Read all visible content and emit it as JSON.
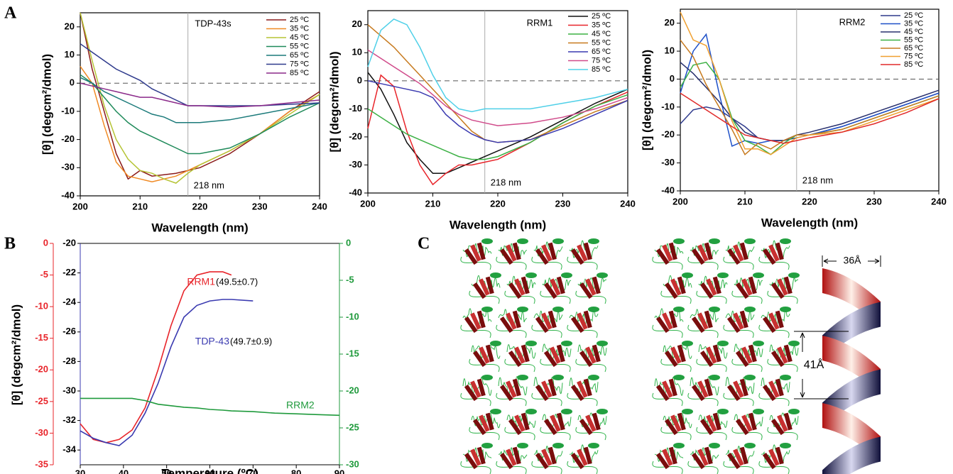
{
  "panel_labels": [
    "A",
    "B",
    "C"
  ],
  "chart_data": [
    {
      "type": "line",
      "title": "TDP-43s",
      "x_label": "Wavelength (nm)",
      "y_label": "[θ] (degcm²/dmol)",
      "xlim": [
        200,
        240
      ],
      "xticks": [
        200,
        210,
        220,
        230,
        240
      ],
      "ylim": [
        -40,
        25
      ],
      "yticks": [
        -40,
        -30,
        -20,
        -10,
        0,
        10,
        20
      ],
      "annotation": {
        "text": "218 nm",
        "x": 218
      },
      "x": [
        200,
        202,
        204,
        206,
        208,
        210,
        212,
        214,
        216,
        218,
        220,
        225,
        230,
        235,
        240
      ],
      "series": [
        {
          "name": "25 ºC",
          "color": "#8b1a1a",
          "values": [
            25,
            5,
            -10,
            -25,
            -34,
            -31,
            -33,
            -32.5,
            -32,
            -31,
            -30,
            -25,
            -18,
            -10,
            -3
          ]
        },
        {
          "name": "35 ºC",
          "color": "#f08a24",
          "values": [
            6,
            0,
            -15,
            -28,
            -33,
            -34,
            -35,
            -34,
            -33,
            -31,
            -29,
            -24,
            -18,
            -10,
            -4
          ]
        },
        {
          "name": "45 ºC",
          "color": "#b5c334",
          "values": [
            25,
            8,
            -8,
            -20,
            -27,
            -31,
            -32,
            -34,
            -35.5,
            -32,
            -29,
            -24,
            -18,
            -11,
            -4
          ]
        },
        {
          "name": "55 ºC",
          "color": "#1f8a5a",
          "values": [
            3,
            0,
            -5,
            -10,
            -14,
            -17,
            -19,
            -21,
            -23,
            -25,
            -25,
            -23,
            -18,
            -12,
            -7
          ]
        },
        {
          "name": "65 ºC",
          "color": "#1b7a7a",
          "values": [
            2,
            0,
            -3,
            -5,
            -7,
            -9,
            -11,
            -12,
            -14,
            -14,
            -14,
            -13,
            -11,
            -9,
            -7
          ]
        },
        {
          "name": "75 ºC",
          "color": "#2e3a8c",
          "values": [
            14,
            11,
            8,
            5,
            3,
            1,
            -2,
            -4,
            -6,
            -8,
            -8,
            -8,
            -8,
            -7.5,
            -7
          ]
        },
        {
          "name": "85 ºC",
          "color": "#8b2a8a",
          "values": [
            0,
            -1,
            -2,
            -3,
            -4,
            -5,
            -5,
            -6,
            -7,
            -8,
            -8,
            -8.5,
            -8,
            -7,
            -6
          ]
        }
      ]
    },
    {
      "type": "line",
      "title": "RRM1",
      "x_label": "Wavelength (nm)",
      "y_label": "[θ] (degcm²/dmol)",
      "xlim": [
        200,
        240
      ],
      "xticks": [
        200,
        210,
        220,
        230,
        240
      ],
      "ylim": [
        -40,
        25
      ],
      "yticks": [
        -40,
        -30,
        -20,
        -10,
        0,
        10,
        20
      ],
      "annotation": {
        "text": "218 nm",
        "x": 218
      },
      "x": [
        200,
        202,
        204,
        206,
        208,
        210,
        212,
        214,
        216,
        218,
        220,
        225,
        230,
        235,
        240
      ],
      "series": [
        {
          "name": "25 ºC",
          "color": "#111111",
          "values": [
            3,
            -3,
            -12,
            -22,
            -28,
            -33,
            -33,
            -31,
            -29,
            -27,
            -25,
            -20,
            -14,
            -8,
            -3
          ]
        },
        {
          "name": "35 ºC",
          "color": "#e8242a",
          "values": [
            -17,
            2,
            -2,
            -18,
            -30,
            -37,
            -33,
            -30,
            -30,
            -29,
            -28,
            -22,
            -15,
            -9,
            -4
          ]
        },
        {
          "name": "45 ºC",
          "color": "#3cb044",
          "values": [
            -10,
            -13,
            -16,
            -19,
            -21,
            -23,
            -25,
            -27,
            -28,
            -28,
            -27,
            -22,
            -15,
            -9,
            -5
          ]
        },
        {
          "name": "55 ºC",
          "color": "#c77a1e",
          "values": [
            20,
            16,
            12,
            7,
            2,
            -3,
            -8,
            -13,
            -18,
            -21,
            -22,
            -21,
            -16,
            -11,
            -7
          ]
        },
        {
          "name": "65 ºC",
          "color": "#3a3ab0",
          "values": [
            0,
            -1,
            -2,
            -3,
            -4,
            -6,
            -12,
            -16,
            -19,
            -21,
            -22,
            -21,
            -17,
            -12,
            -7
          ]
        },
        {
          "name": "75 ºC",
          "color": "#d04a8a",
          "values": [
            11,
            8,
            5,
            2,
            -1,
            -5,
            -9,
            -12,
            -14,
            -15,
            -16,
            -15,
            -13,
            -10,
            -6
          ]
        },
        {
          "name": "85 ºC",
          "color": "#4fd0e8",
          "values": [
            5,
            18,
            22,
            20,
            12,
            2,
            -6,
            -10,
            -11,
            -10,
            -10,
            -10,
            -8,
            -6,
            -3
          ]
        }
      ]
    },
    {
      "type": "line",
      "title": "RRM2",
      "x_label": "Wavelength (nm)",
      "y_label": "[θ] (degcm²/dmol)",
      "xlim": [
        200,
        240
      ],
      "xticks": [
        200,
        210,
        220,
        230,
        240
      ],
      "ylim": [
        -40,
        25
      ],
      "yticks": [
        -40,
        -30,
        -20,
        -10,
        0,
        10,
        20
      ],
      "annotation": {
        "text": "218 nm",
        "x": 218
      },
      "x": [
        200,
        202,
        204,
        206,
        208,
        210,
        212,
        214,
        216,
        218,
        220,
        225,
        230,
        235,
        240
      ],
      "series": [
        {
          "name": "25 ºC",
          "color": "#2e3a8c",
          "values": [
            -16,
            -11,
            -10,
            -11,
            -14,
            -17,
            -21,
            -22,
            -22,
            -21,
            -20,
            -17,
            -13,
            -9,
            -5
          ]
        },
        {
          "name": "35 ºC",
          "color": "#1e50c8",
          "values": [
            -5,
            10,
            16,
            -5,
            -24,
            -22,
            -23,
            -22,
            -22,
            -20,
            -20,
            -17,
            -13,
            -9,
            -5
          ]
        },
        {
          "name": "45 ºC",
          "color": "#28306e",
          "values": [
            6,
            2,
            -3,
            -8,
            -14,
            -19,
            -21,
            -22,
            -22,
            -20,
            -19,
            -16,
            -12,
            -8,
            -4
          ]
        },
        {
          "name": "55 ºC",
          "color": "#3cb044",
          "values": [
            -3,
            5,
            6,
            0,
            -14,
            -22,
            -24,
            -27,
            -23,
            -20,
            -20,
            -18,
            -14,
            -10,
            -6
          ]
        },
        {
          "name": "65 ºC",
          "color": "#c77a1e",
          "values": [
            14,
            8,
            -2,
            -10,
            -18,
            -27,
            -23,
            -25,
            -22,
            -20,
            -20,
            -18,
            -14,
            -10,
            -6
          ]
        },
        {
          "name": "75 ºC",
          "color": "#f0a030",
          "values": [
            24,
            14,
            12,
            0,
            -15,
            -25,
            -25,
            -27,
            -24,
            -21,
            -20,
            -19,
            -15,
            -11,
            -7
          ]
        },
        {
          "name": "85 ºC",
          "color": "#e02a2a",
          "values": [
            -5,
            -8,
            -11,
            -14,
            -17,
            -20,
            -21,
            -22,
            -23,
            -22,
            -21,
            -19,
            -16,
            -12,
            -7
          ]
        }
      ]
    },
    {
      "type": "multi_axis_line",
      "x_label": "Temperature (ºC)",
      "y_label": "[θ] (degcm²/dmol)",
      "xlim": [
        30,
        90
      ],
      "xticks": [
        30,
        40,
        50,
        60,
        70,
        80,
        90
      ],
      "ylim": [
        -35,
        0
      ],
      "yticks": [
        -35,
        -30,
        -25,
        -20,
        -15,
        -10,
        -5,
        0
      ],
      "y3lim": [
        -35,
        -20
      ],
      "y3ticks": [
        -34,
        -32,
        -30,
        -28,
        -26,
        -24,
        -22,
        -20
      ],
      "y2lim": [
        -30,
        0
      ],
      "y2ticks": [
        -30,
        -25,
        -20,
        -15,
        -10,
        -5,
        0
      ],
      "x": [
        30,
        33,
        36,
        39,
        42,
        45,
        48,
        51,
        54,
        57,
        60,
        63,
        65,
        70,
        75,
        80,
        85,
        90
      ],
      "series": [
        {
          "name": "RRM1",
          "note": "(49.5±0.7)",
          "color": "#e8242a",
          "axis": "y",
          "values": [
            -28.5,
            -31,
            -31.5,
            -31,
            -29.5,
            -26,
            -20,
            -13,
            -7.5,
            -5,
            -4.5,
            -4.5,
            -5,
            null,
            null,
            null,
            null,
            null
          ]
        },
        {
          "name": "TDP-43",
          "note": "(49.7±0.9)",
          "color": "#3a3ab0",
          "axis": "y3",
          "values": [
            -32.7,
            -33.2,
            -33.5,
            -33.7,
            -33,
            -31.5,
            -29.5,
            -27,
            -25,
            -24.2,
            -23.9,
            -23.8,
            -23.8,
            -23.9,
            null,
            null,
            null,
            null
          ]
        },
        {
          "name": "RRM2",
          "color": "#1f9a3c",
          "axis": "y2",
          "values": [
            -21,
            -21,
            -21,
            -21,
            -21,
            -21.3,
            -21.8,
            -22,
            -22.2,
            -22.3,
            -22.5,
            -22.6,
            -22.7,
            -22.8,
            -23,
            -23.1,
            -23.2,
            -23.3
          ]
        }
      ]
    }
  ],
  "panel_c": {
    "width_label": "36Å",
    "pitch_label": "41Å"
  }
}
